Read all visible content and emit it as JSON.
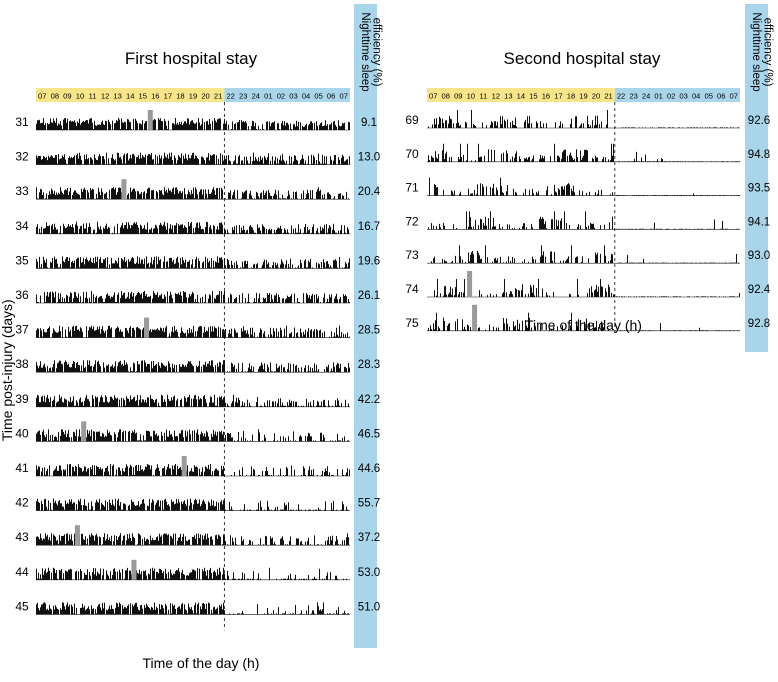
{
  "colors": {
    "day_band": "#f8e58a",
    "night_band": "#a9d5ea",
    "sidebar": "#a9d5ea",
    "activity": "#111111",
    "marker": "#9a9a9a",
    "divider": "#222222"
  },
  "chart_data": [
    {
      "type": "actogram",
      "title": "First hospital stay",
      "xlabel": "Time of the day (h)",
      "ylabel": "Time post-injury (days)",
      "sidebar_label": "Nighttime sleep efficiency (%)",
      "hours": [
        "07",
        "08",
        "09",
        "10",
        "11",
        "12",
        "13",
        "14",
        "15",
        "16",
        "17",
        "18",
        "19",
        "20",
        "21",
        "22",
        "23",
        "24",
        "01",
        "02",
        "03",
        "04",
        "05",
        "06",
        "07"
      ],
      "day_hours_count": 15,
      "night_start_hour": "22",
      "rows": [
        {
          "day": "31",
          "efficiency": "9.1",
          "marker_hour": 16.1
        },
        {
          "day": "32",
          "efficiency": "13.0",
          "marker_hour": null
        },
        {
          "day": "33",
          "efficiency": "20.4",
          "marker_hour": 14.0
        },
        {
          "day": "34",
          "efficiency": "16.7",
          "marker_hour": null
        },
        {
          "day": "35",
          "efficiency": "19.6",
          "marker_hour": null
        },
        {
          "day": "36",
          "efficiency": "26.1",
          "marker_hour": null
        },
        {
          "day": "37",
          "efficiency": "28.5",
          "marker_hour": 15.8
        },
        {
          "day": "38",
          "efficiency": "28.3",
          "marker_hour": null
        },
        {
          "day": "39",
          "efficiency": "42.2",
          "marker_hour": null
        },
        {
          "day": "40",
          "efficiency": "46.5",
          "marker_hour": 10.8
        },
        {
          "day": "41",
          "efficiency": "44.6",
          "marker_hour": 18.8
        },
        {
          "day": "42",
          "efficiency": "55.7",
          "marker_hour": null
        },
        {
          "day": "43",
          "efficiency": "37.2",
          "marker_hour": 10.3
        },
        {
          "day": "44",
          "efficiency": "53.0",
          "marker_hour": 14.8
        },
        {
          "day": "45",
          "efficiency": "51.0",
          "marker_hour": null
        }
      ]
    },
    {
      "type": "actogram",
      "title": "Second hospital stay",
      "xlabel": "Time of the day (h)",
      "sidebar_label": "Nighttime sleep efficiency (%)",
      "hours": [
        "07",
        "08",
        "09",
        "10",
        "11",
        "12",
        "13",
        "14",
        "15",
        "16",
        "17",
        "18",
        "19",
        "20",
        "21",
        "22",
        "23",
        "24",
        "01",
        "02",
        "03",
        "04",
        "05",
        "06",
        "07"
      ],
      "day_hours_count": 15,
      "night_start_hour": "22",
      "rows": [
        {
          "day": "69",
          "efficiency": "92.6",
          "marker_hour": null
        },
        {
          "day": "70",
          "efficiency": "94.8",
          "marker_hour": null
        },
        {
          "day": "71",
          "efficiency": "93.5",
          "marker_hour": null
        },
        {
          "day": "72",
          "efficiency": "94.1",
          "marker_hour": null
        },
        {
          "day": "73",
          "efficiency": "93.0",
          "marker_hour": null
        },
        {
          "day": "74",
          "efficiency": "92.4",
          "marker_hour": 10.4
        },
        {
          "day": "75",
          "efficiency": "92.8",
          "marker_hour": 10.8
        }
      ]
    }
  ]
}
